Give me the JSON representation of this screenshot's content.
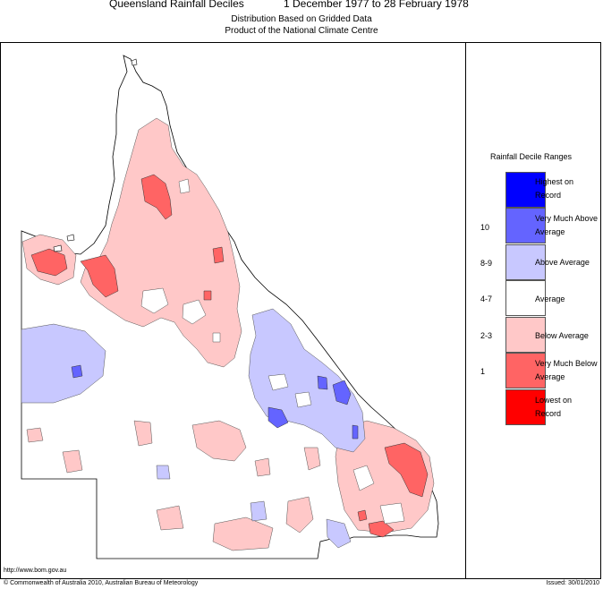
{
  "header": {
    "title_left": "Queensland Rainfall Deciles",
    "title_right": "1 December 1977 to 28 February 1978",
    "subtitle_1": "Distribution Based on Gridded Data",
    "subtitle_2": "Product of the National Climate Centre"
  },
  "legend": {
    "title": "Rainfall Decile Ranges",
    "items": [
      {
        "range": "",
        "label": "Highest on Record",
        "color": "#0000ff"
      },
      {
        "range": "10",
        "label": "Very Much Above Average",
        "color": "#6464ff"
      },
      {
        "range": "8-9",
        "label": "Above Average",
        "color": "#c8c8ff"
      },
      {
        "range": "4-7",
        "label": "Average",
        "color": "#ffffff"
      },
      {
        "range": "2-3",
        "label": "Below Average",
        "color": "#ffc8c8"
      },
      {
        "range": "1",
        "label": "Very Much Below Average",
        "color": "#ff6464"
      },
      {
        "range": "",
        "label": "Lowest on Record",
        "color": "#ff0000"
      }
    ]
  },
  "footer": {
    "url": "http://www.bom.gov.au",
    "copyright": "© Commonwealth of Australia 2010, Australian Bureau of Meteorology",
    "issued": "Issued: 30/01/2010"
  }
}
